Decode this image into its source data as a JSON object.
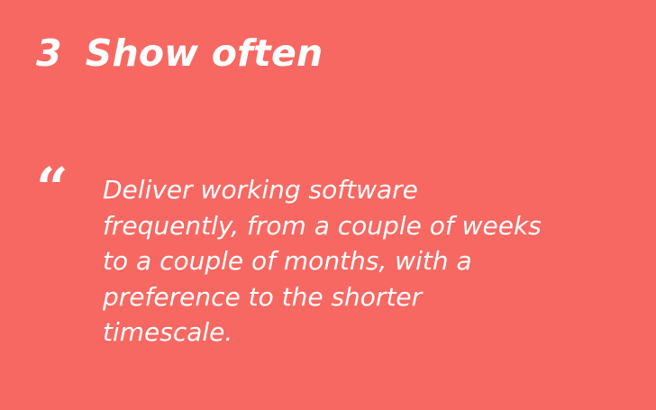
{
  "slide": {
    "number": "3",
    "title": "Show often",
    "quote_mark": "“",
    "quote_lines": [
      "Deliver working software",
      "frequently, from a couple of weeks",
      "to a couple of months, with a",
      "preference to the shorter",
      "timescale."
    ]
  },
  "colors": {
    "background": "#f76862",
    "text": "#ffffff"
  }
}
